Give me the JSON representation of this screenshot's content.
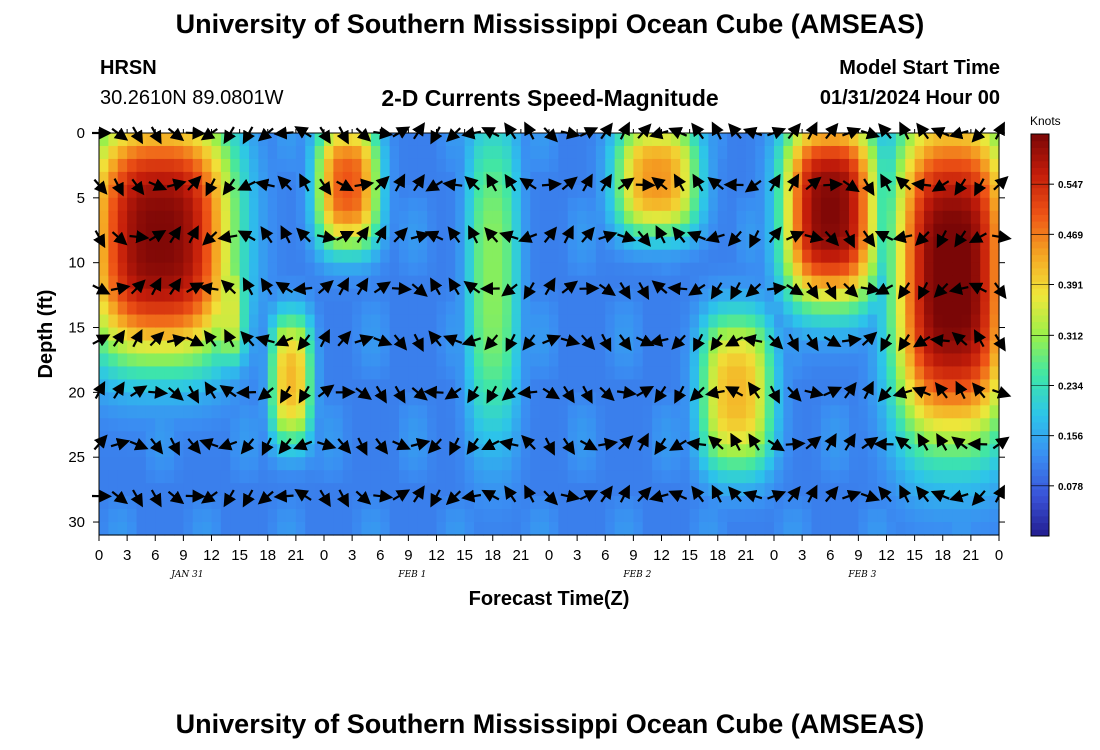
{
  "header": {
    "title": "University of Southern Mississippi Ocean Cube (AMSEAS)",
    "station": "HRSN",
    "coords": "30.2610N  89.0801W",
    "plot_title": "2-D Currents Speed-Magnitude",
    "model_label": "Model Start Time",
    "model_time": "01/31/2024 Hour 00"
  },
  "footer": {
    "title": "University of Southern Mississippi Ocean Cube (AMSEAS)"
  },
  "chart_data": {
    "type": "heatmap",
    "title": "2-D Currents Speed-Magnitude",
    "xlabel": "Forecast Time(Z)",
    "ylabel": "Depth (ft)",
    "x_tick_labels": [
      "0",
      "3",
      "6",
      "9",
      "12",
      "15",
      "18",
      "21",
      "0",
      "3",
      "6",
      "9",
      "12",
      "15",
      "18",
      "21",
      "0",
      "3",
      "6",
      "9",
      "12",
      "15",
      "18",
      "21",
      "0",
      "3",
      "6",
      "9",
      "12",
      "15",
      "18",
      "21",
      "0"
    ],
    "x_range_hours": [
      0,
      96
    ],
    "date_labels": [
      {
        "text": "JAN 31",
        "hour": 9
      },
      {
        "text": "FEB 1",
        "hour": 33
      },
      {
        "text": "FEB 2",
        "hour": 57
      },
      {
        "text": "FEB 3",
        "hour": 81
      }
    ],
    "y_ticks": [
      0,
      5,
      10,
      15,
      20,
      25,
      30
    ],
    "ylim": [
      0,
      31
    ],
    "y_inverted": true,
    "colorbar": {
      "unit": "Knots",
      "ticks": [
        "0.078",
        "0.156",
        "0.234",
        "0.312",
        "0.391",
        "0.469",
        "0.547"
      ],
      "range": [
        0,
        0.625
      ],
      "palette": [
        "#221c8e",
        "#3a52d8",
        "#3a8df2",
        "#2dc4ea",
        "#3ee6a8",
        "#9af04a",
        "#f0e63a",
        "#f5a623",
        "#ee5416",
        "#c41d0a",
        "#7a0606"
      ]
    },
    "vector_depths_ft": [
      0,
      4,
      8,
      12,
      16,
      20,
      24,
      28
    ],
    "vector_interval_hours": 2,
    "speed_features": [
      {
        "t0": 0,
        "t1": 13,
        "d0": 0,
        "d1": 16,
        "peak": 0.62
      },
      {
        "t0": 13,
        "t1": 15,
        "d0": 10,
        "d1": 17,
        "peak": 0.36
      },
      {
        "t0": 19,
        "t1": 22,
        "d0": 15,
        "d1": 23,
        "peak": 0.42
      },
      {
        "t0": 24,
        "t1": 29,
        "d0": 0,
        "d1": 8,
        "peak": 0.5
      },
      {
        "t0": 40,
        "t1": 44,
        "d0": 0,
        "d1": 22,
        "peak": 0.3
      },
      {
        "t0": 56,
        "t1": 63,
        "d0": 0,
        "d1": 7,
        "peak": 0.45
      },
      {
        "t0": 65,
        "t1": 71,
        "d0": 15,
        "d1": 25,
        "peak": 0.42
      },
      {
        "t0": 74,
        "t1": 82,
        "d0": 0,
        "d1": 12,
        "peak": 0.62
      },
      {
        "t0": 86,
        "t1": 96,
        "d0": 0,
        "d1": 22,
        "peak": 0.64
      }
    ]
  }
}
